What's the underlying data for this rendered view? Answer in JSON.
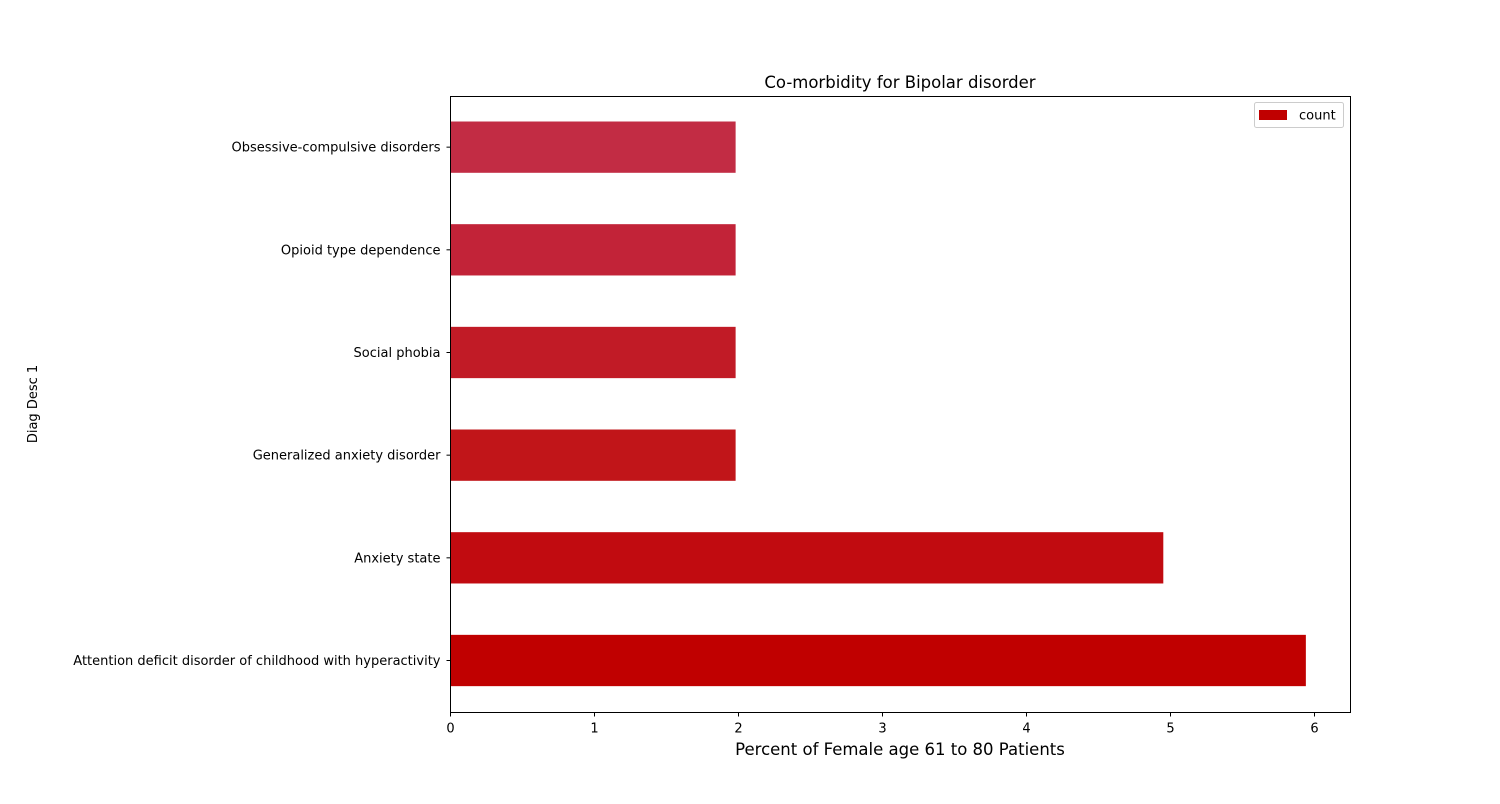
{
  "chart_data": {
    "type": "bar",
    "orientation": "horizontal",
    "title": "Co-morbidity for Bipolar disorder",
    "xlabel": "Percent of Female age 61 to 80 Patients",
    "ylabel": "Diag Desc 1",
    "xlim": [
      0,
      6.25
    ],
    "xticks": [
      0,
      1,
      2,
      3,
      4,
      5,
      6
    ],
    "grid": false,
    "legend": {
      "placement": "top-right",
      "entries": [
        "count"
      ]
    },
    "categories": [
      "Attention deficit disorder of childhood with hyperactivity",
      "Anxiety state",
      "Generalized anxiety disorder",
      "Social phobia",
      "Opioid type dependence",
      "Obsessive-compulsive disorders"
    ],
    "series": [
      {
        "name": "count",
        "values": [
          5.94,
          4.95,
          1.98,
          1.98,
          1.98,
          1.98
        ]
      }
    ],
    "colors": [
      "#c00000",
      "#c10b10",
      "#c11519",
      "#c11b26",
      "#c22338",
      "#c22c44"
    ],
    "legend_color": "#c00000"
  }
}
